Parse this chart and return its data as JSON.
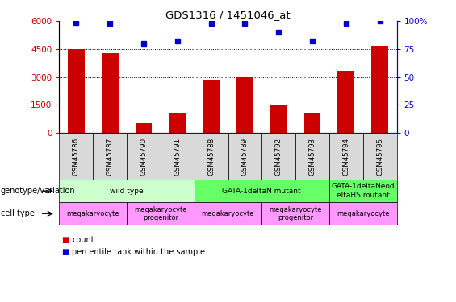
{
  "title": "GDS1316 / 1451046_at",
  "samples": [
    "GSM45786",
    "GSM45787",
    "GSM45790",
    "GSM45791",
    "GSM45788",
    "GSM45789",
    "GSM45792",
    "GSM45793",
    "GSM45794",
    "GSM45795"
  ],
  "counts": [
    4500,
    4300,
    500,
    1100,
    2850,
    3000,
    1500,
    1100,
    3350,
    4650
  ],
  "percentiles": [
    99,
    98,
    80,
    82,
    98,
    98,
    90,
    82,
    98,
    100
  ],
  "ylim_left": [
    0,
    6000
  ],
  "ylim_right": [
    0,
    100
  ],
  "yticks_left": [
    0,
    1500,
    3000,
    4500,
    6000
  ],
  "ytick_labels_left": [
    "0",
    "1500",
    "3000",
    "4500",
    "6000"
  ],
  "yticks_right": [
    0,
    25,
    50,
    75,
    100
  ],
  "ytick_labels_right": [
    "0",
    "25",
    "50",
    "75",
    "100%"
  ],
  "bar_color": "#cc0000",
  "dot_color": "#0000cc",
  "genotype_groups": [
    {
      "label": "wild type",
      "start": 0,
      "end": 4,
      "color": "#ccffcc"
    },
    {
      "label": "GATA-1deltaN mutant",
      "start": 4,
      "end": 8,
      "color": "#66ff66"
    },
    {
      "label": "GATA-1deltaNeod\neltaHS mutant",
      "start": 8,
      "end": 10,
      "color": "#66ff66"
    }
  ],
  "cell_type_groups": [
    {
      "label": "megakaryocyte",
      "start": 0,
      "end": 2,
      "color": "#ff99ff"
    },
    {
      "label": "megakaryocyte\nprogenitor",
      "start": 2,
      "end": 4,
      "color": "#ff99ff"
    },
    {
      "label": "megakaryocyte",
      "start": 4,
      "end": 6,
      "color": "#ff99ff"
    },
    {
      "label": "megakaryocyte\nprogenitor",
      "start": 6,
      "end": 8,
      "color": "#ff99ff"
    },
    {
      "label": "megakaryocyte",
      "start": 8,
      "end": 10,
      "color": "#ff99ff"
    }
  ],
  "left_label_genotype": "genotype/variation",
  "left_label_celltype": "cell type",
  "legend_count_label": "count",
  "legend_percentile_label": "percentile rank within the sample",
  "sample_bg_color": "#d9d9d9"
}
